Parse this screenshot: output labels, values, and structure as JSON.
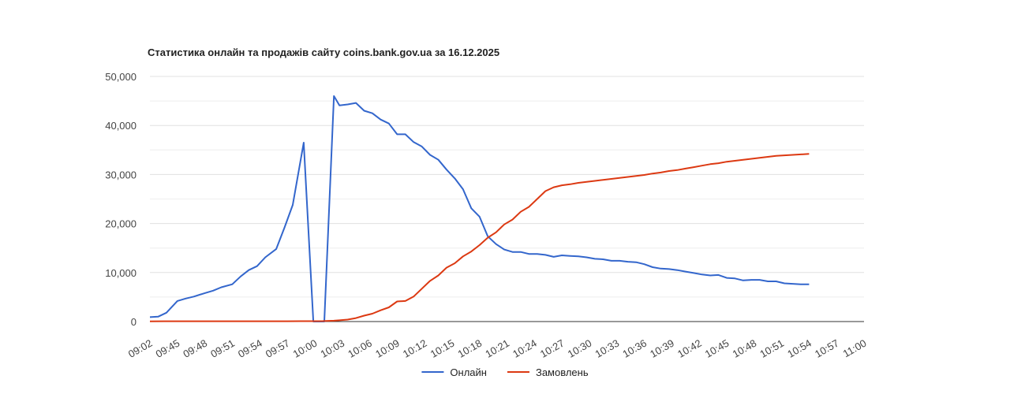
{
  "chart_data": {
    "type": "line",
    "title": "Статистика онлайн та продажів сайту coins.bank.gov.ua за 16.12.2025",
    "xlabel": "",
    "ylabel": "",
    "ylim": [
      0,
      50000
    ],
    "y_ticks": [
      0,
      10000,
      20000,
      30000,
      40000,
      50000
    ],
    "y_tick_labels": [
      "0",
      "10,000",
      "20,000",
      "30,000",
      "40,000",
      "50,000"
    ],
    "grid": true,
    "legend_position": "bottom",
    "x_tick_labels": [
      "09:02",
      "09:45",
      "09:48",
      "09:51",
      "09:54",
      "09:57",
      "10:00",
      "10:03",
      "10:06",
      "10:09",
      "10:12",
      "10:15",
      "10:18",
      "10:21",
      "10:24",
      "10:27",
      "10:30",
      "10:33",
      "10:36",
      "10:39",
      "10:42",
      "10:45",
      "10:48",
      "10:51",
      "10:54",
      "10:57",
      "11:00"
    ],
    "series": [
      {
        "name": "Онлайн",
        "color": "#3366cc",
        "points": [
          [
            0,
            900
          ],
          [
            0.3,
            1000
          ],
          [
            0.6,
            1800
          ],
          [
            1.0,
            4200
          ],
          [
            1.3,
            4700
          ],
          [
            1.6,
            5100
          ],
          [
            2.0,
            5800
          ],
          [
            2.3,
            6300
          ],
          [
            2.6,
            7000
          ],
          [
            3.0,
            7600
          ],
          [
            3.3,
            9200
          ],
          [
            3.6,
            10500
          ],
          [
            3.9,
            11300
          ],
          [
            4.2,
            13100
          ],
          [
            4.6,
            14800
          ],
          [
            4.9,
            19200
          ],
          [
            5.2,
            23800
          ],
          [
            5.6,
            36500
          ],
          [
            5.95,
            0
          ],
          [
            6.35,
            0
          ],
          [
            6.7,
            46000
          ],
          [
            6.9,
            44100
          ],
          [
            7.2,
            44300
          ],
          [
            7.5,
            44600
          ],
          [
            7.8,
            43000
          ],
          [
            8.1,
            42500
          ],
          [
            8.4,
            41200
          ],
          [
            8.7,
            40400
          ],
          [
            9.0,
            38200
          ],
          [
            9.3,
            38200
          ],
          [
            9.6,
            36600
          ],
          [
            9.9,
            35700
          ],
          [
            10.2,
            34000
          ],
          [
            10.5,
            33000
          ],
          [
            10.8,
            31000
          ],
          [
            11.1,
            29200
          ],
          [
            11.4,
            27000
          ],
          [
            11.7,
            23100
          ],
          [
            12.0,
            21400
          ],
          [
            12.3,
            17400
          ],
          [
            12.6,
            15800
          ],
          [
            12.9,
            14700
          ],
          [
            13.2,
            14200
          ],
          [
            13.5,
            14200
          ],
          [
            13.8,
            13800
          ],
          [
            14.1,
            13800
          ],
          [
            14.4,
            13600
          ],
          [
            14.7,
            13200
          ],
          [
            15.0,
            13500
          ],
          [
            15.3,
            13400
          ],
          [
            15.6,
            13300
          ],
          [
            15.9,
            13100
          ],
          [
            16.2,
            12800
          ],
          [
            16.5,
            12700
          ],
          [
            16.8,
            12400
          ],
          [
            17.1,
            12400
          ],
          [
            17.4,
            12200
          ],
          [
            17.7,
            12100
          ],
          [
            18.0,
            11700
          ],
          [
            18.3,
            11100
          ],
          [
            18.6,
            10800
          ],
          [
            18.9,
            10700
          ],
          [
            19.2,
            10500
          ],
          [
            19.5,
            10200
          ],
          [
            19.8,
            9900
          ],
          [
            20.1,
            9600
          ],
          [
            20.4,
            9400
          ],
          [
            20.7,
            9500
          ],
          [
            21.0,
            8900
          ],
          [
            21.3,
            8800
          ],
          [
            21.6,
            8400
          ],
          [
            21.9,
            8500
          ],
          [
            22.2,
            8500
          ],
          [
            22.5,
            8200
          ],
          [
            22.8,
            8200
          ],
          [
            23.1,
            7800
          ],
          [
            23.4,
            7700
          ],
          [
            23.7,
            7600
          ],
          [
            24.0,
            7600
          ]
        ]
      },
      {
        "name": "Замовлень",
        "color": "#dc3912",
        "points": [
          [
            0,
            50
          ],
          [
            0.5,
            60
          ],
          [
            1.0,
            60
          ],
          [
            2.0,
            60
          ],
          [
            3.0,
            60
          ],
          [
            4.0,
            60
          ],
          [
            5.0,
            60
          ],
          [
            5.9,
            80
          ],
          [
            6.3,
            100
          ],
          [
            6.7,
            180
          ],
          [
            6.9,
            250
          ],
          [
            7.2,
            400
          ],
          [
            7.5,
            700
          ],
          [
            7.8,
            1200
          ],
          [
            8.1,
            1600
          ],
          [
            8.4,
            2300
          ],
          [
            8.7,
            2900
          ],
          [
            9.0,
            4100
          ],
          [
            9.3,
            4200
          ],
          [
            9.6,
            5100
          ],
          [
            9.9,
            6700
          ],
          [
            10.2,
            8300
          ],
          [
            10.5,
            9400
          ],
          [
            10.8,
            11000
          ],
          [
            11.1,
            11900
          ],
          [
            11.4,
            13300
          ],
          [
            11.7,
            14300
          ],
          [
            12.0,
            15600
          ],
          [
            12.3,
            17100
          ],
          [
            12.6,
            18200
          ],
          [
            12.9,
            19800
          ],
          [
            13.2,
            20800
          ],
          [
            13.5,
            22400
          ],
          [
            13.8,
            23400
          ],
          [
            14.1,
            25000
          ],
          [
            14.4,
            26600
          ],
          [
            14.7,
            27400
          ],
          [
            15.0,
            27800
          ],
          [
            15.3,
            28000
          ],
          [
            15.6,
            28300
          ],
          [
            15.9,
            28500
          ],
          [
            16.2,
            28700
          ],
          [
            16.5,
            28900
          ],
          [
            16.8,
            29100
          ],
          [
            17.1,
            29300
          ],
          [
            17.4,
            29500
          ],
          [
            17.7,
            29700
          ],
          [
            18.0,
            29900
          ],
          [
            18.3,
            30200
          ],
          [
            18.6,
            30400
          ],
          [
            18.9,
            30700
          ],
          [
            19.2,
            30900
          ],
          [
            19.5,
            31200
          ],
          [
            19.8,
            31500
          ],
          [
            20.1,
            31800
          ],
          [
            20.4,
            32100
          ],
          [
            20.7,
            32300
          ],
          [
            21.0,
            32600
          ],
          [
            21.3,
            32800
          ],
          [
            21.6,
            33000
          ],
          [
            21.9,
            33200
          ],
          [
            22.2,
            33400
          ],
          [
            22.5,
            33600
          ],
          [
            22.8,
            33800
          ],
          [
            23.1,
            33900
          ],
          [
            23.4,
            34000
          ],
          [
            23.7,
            34100
          ],
          [
            24.0,
            34200
          ]
        ]
      }
    ]
  }
}
